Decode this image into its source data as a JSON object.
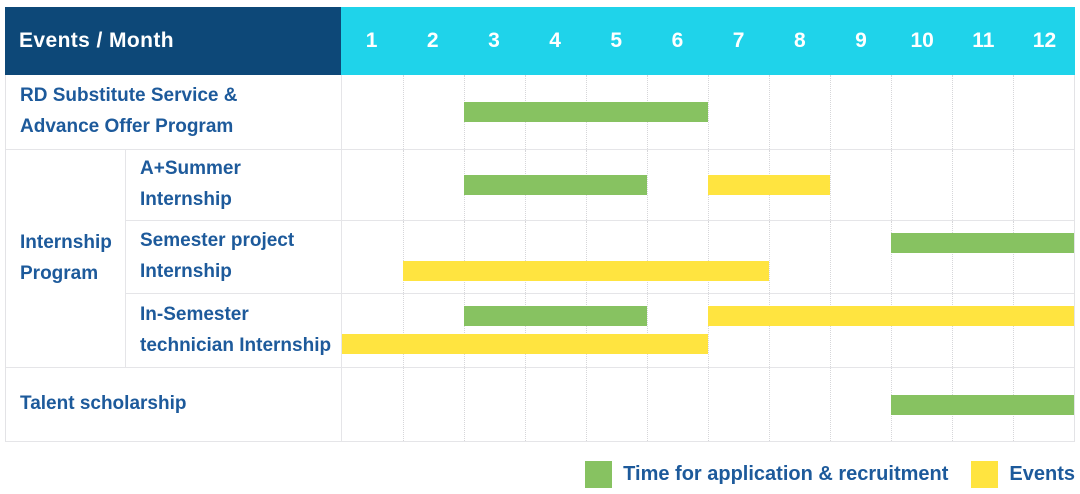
{
  "chart_data": {
    "type": "gantt",
    "title": "Events / Month",
    "x_axis": {
      "unit": "month",
      "ticks": [
        "1",
        "2",
        "3",
        "4",
        "5",
        "6",
        "7",
        "8",
        "9",
        "10",
        "11",
        "12"
      ],
      "range": [
        1,
        12
      ]
    },
    "groups": {
      "Internship Program": {
        "label_lines": [
          "Internship",
          "Program"
        ]
      }
    },
    "rows": [
      {
        "group": null,
        "label": "RD Substitute Service & Advance Offer Program",
        "label_lines": [
          "RD Substitute Service &",
          "Advance Offer Program"
        ],
        "bars": [
          {
            "series": "application",
            "start_month": 3,
            "end_month": 6,
            "lane": "center"
          }
        ]
      },
      {
        "group": "Internship Program",
        "label": "A+Summer Internship",
        "label_lines": [
          "A+Summer",
          "Internship"
        ],
        "bars": [
          {
            "series": "application",
            "start_month": 3,
            "end_month": 5,
            "lane": "center"
          },
          {
            "series": "events",
            "start_month": 7,
            "end_month": 8,
            "lane": "center"
          }
        ]
      },
      {
        "group": "Internship Program",
        "label": "Semester project Internship",
        "label_lines": [
          "Semester project",
          "Internship"
        ],
        "bars": [
          {
            "series": "application",
            "start_month": 10,
            "end_month": 12,
            "lane": "upper"
          },
          {
            "series": "events",
            "start_month": 2,
            "end_month": 7,
            "lane": "lower"
          }
        ]
      },
      {
        "group": "Internship Program",
        "label": "In-Semester technician Internship",
        "label_lines": [
          "In-Semester",
          "technician Internship"
        ],
        "bars": [
          {
            "series": "application",
            "start_month": 3,
            "end_month": 5,
            "lane": "upper"
          },
          {
            "series": "events",
            "start_month": 7,
            "end_month": 12,
            "lane": "upper"
          },
          {
            "series": "events",
            "start_month": 1,
            "end_month": 6,
            "lane": "lower"
          }
        ]
      },
      {
        "group": null,
        "label": "Talent scholarship",
        "label_lines": [
          "Talent scholarship"
        ],
        "bars": [
          {
            "series": "application",
            "start_month": 10,
            "end_month": 12,
            "lane": "center"
          }
        ]
      }
    ],
    "legend": [
      {
        "series": "application",
        "label": "Time for application & recruitment",
        "color": "#87C261"
      },
      {
        "series": "events",
        "label": "Events",
        "color": "#FFE440"
      }
    ],
    "legend_position": "bottom-right",
    "grid": true
  },
  "colors": {
    "header_bg": "#0D4878",
    "month_header_bg": "#1FD3EA",
    "header_text": "#FFFFFF",
    "label_text": "#1D5A9B",
    "application_bar": "#87C261",
    "events_bar": "#FFE440",
    "grid_line": "#E5E5E8"
  }
}
